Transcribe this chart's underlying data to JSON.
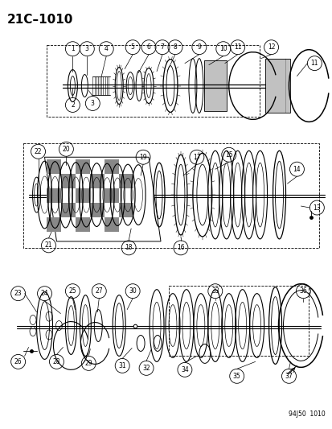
{
  "title": "21C–1010",
  "watermark": "94J50  1010",
  "bg_color": "#ffffff",
  "line_color": "#000000",
  "fig_width": 4.14,
  "fig_height": 5.33,
  "dpi": 100
}
